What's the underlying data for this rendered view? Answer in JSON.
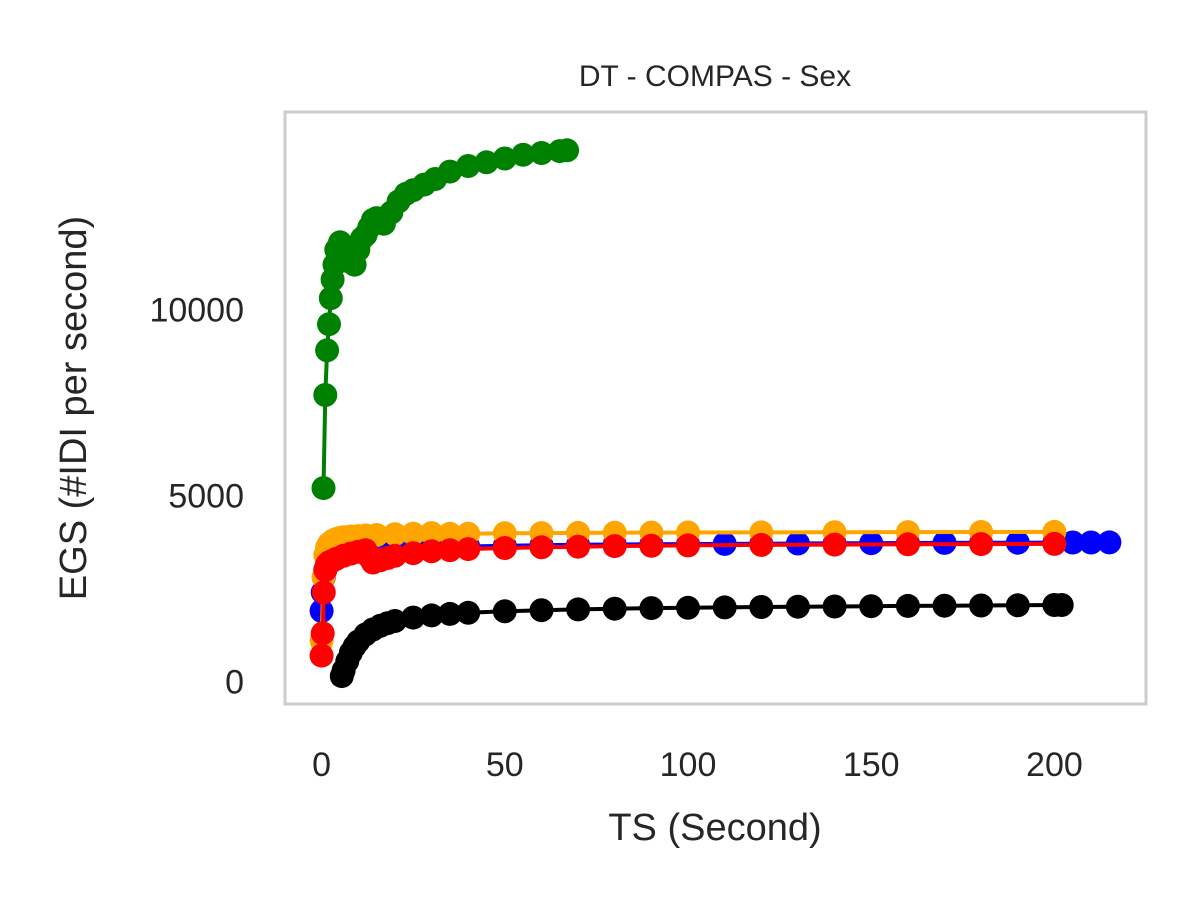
{
  "chart_data": {
    "type": "line",
    "title": "DT - COMPAS - Sex",
    "xlabel": "TS (Second)",
    "ylabel": "EGS (#IDI  per second)",
    "xlim": [
      -10,
      225
    ],
    "ylim": [
      -600,
      15300
    ],
    "xticks": [
      0,
      50,
      100,
      150,
      200
    ],
    "yticks": [
      0,
      5000,
      10000
    ],
    "grid": false,
    "legend": "none",
    "series": [
      {
        "color": "#0000ff",
        "marker": "circle",
        "x": [
          0,
          0.3,
          0.6,
          1,
          1.5,
          2,
          3,
          4,
          5,
          7,
          10,
          13,
          16,
          20,
          25,
          30,
          40,
          50,
          60,
          70,
          80,
          90,
          100,
          110,
          120,
          130,
          140,
          150,
          160,
          170,
          180,
          190,
          200,
          205,
          210,
          215
        ],
        "y": [
          1900,
          2400,
          2800,
          3000,
          3150,
          3250,
          3350,
          3400,
          3440,
          3480,
          3510,
          3530,
          3550,
          3570,
          3590,
          3605,
          3630,
          3650,
          3665,
          3675,
          3685,
          3690,
          3695,
          3700,
          3705,
          3710,
          3715,
          3720,
          3723,
          3726,
          3729,
          3732,
          3735,
          3737,
          3738,
          3740
        ]
      },
      {
        "color": "#ffa500",
        "marker": "circle",
        "x": [
          0,
          0.5,
          1,
          1.5,
          2,
          3,
          4,
          5,
          6,
          8,
          10,
          12,
          15,
          20,
          25,
          30,
          35,
          40,
          50,
          60,
          70,
          80,
          90,
          100,
          120,
          140,
          160,
          180,
          200
        ],
        "y": [
          1100,
          2800,
          3400,
          3600,
          3700,
          3780,
          3830,
          3860,
          3880,
          3900,
          3910,
          3925,
          3940,
          3960,
          3975,
          3990,
          3970,
          3975,
          3985,
          3990,
          3995,
          4000,
          4003,
          4006,
          4010,
          4013,
          4016,
          4019,
          4022
        ]
      },
      {
        "color": "#ff0000",
        "marker": "circle",
        "x": [
          0,
          0.3,
          0.6,
          1,
          1.5,
          2,
          3,
          4,
          6,
          8,
          10,
          12,
          13,
          14,
          16,
          18,
          20,
          25,
          30,
          35,
          40,
          50,
          60,
          70,
          80,
          90,
          100,
          120,
          140,
          160,
          180,
          200
        ],
        "y": [
          700,
          1300,
          2400,
          3000,
          3150,
          3200,
          3250,
          3300,
          3380,
          3440,
          3490,
          3530,
          3350,
          3200,
          3260,
          3320,
          3380,
          3450,
          3500,
          3530,
          3560,
          3590,
          3610,
          3625,
          3640,
          3650,
          3660,
          3672,
          3682,
          3690,
          3695,
          3700
        ]
      },
      {
        "color": "#000000",
        "marker": "circle",
        "x": [
          5.5,
          6,
          7,
          8,
          9,
          10,
          12,
          14,
          16,
          18,
          20,
          25,
          30,
          35,
          40,
          50,
          60,
          70,
          80,
          90,
          100,
          110,
          120,
          130,
          140,
          150,
          160,
          170,
          180,
          190,
          200,
          202
        ],
        "y": [
          150,
          300,
          550,
          780,
          950,
          1080,
          1270,
          1400,
          1500,
          1570,
          1630,
          1720,
          1780,
          1820,
          1850,
          1890,
          1920,
          1940,
          1960,
          1975,
          1985,
          1995,
          2005,
          2012,
          2020,
          2027,
          2034,
          2040,
          2046,
          2052,
          2058,
          2060
        ]
      },
      {
        "color": "#008000",
        "marker": "circle",
        "x": [
          0.5,
          1,
          1.5,
          2,
          2.5,
          3,
          3.5,
          4,
          4.5,
          5,
          5.5,
          6,
          7,
          8,
          9,
          10,
          11,
          12,
          13,
          14,
          15,
          17,
          19,
          21,
          23,
          25,
          28,
          31,
          35,
          40,
          45,
          50,
          55,
          60,
          65,
          67
        ],
        "y": [
          5200,
          7700,
          8900,
          9600,
          10300,
          10800,
          11200,
          11600,
          11400,
          11800,
          11500,
          11700,
          11300,
          11500,
          11200,
          11600,
          11900,
          12000,
          12200,
          12400,
          12450,
          12300,
          12600,
          12900,
          13100,
          13200,
          13350,
          13500,
          13700,
          13850,
          13950,
          14050,
          14150,
          14200,
          14250,
          14270
        ]
      }
    ]
  }
}
